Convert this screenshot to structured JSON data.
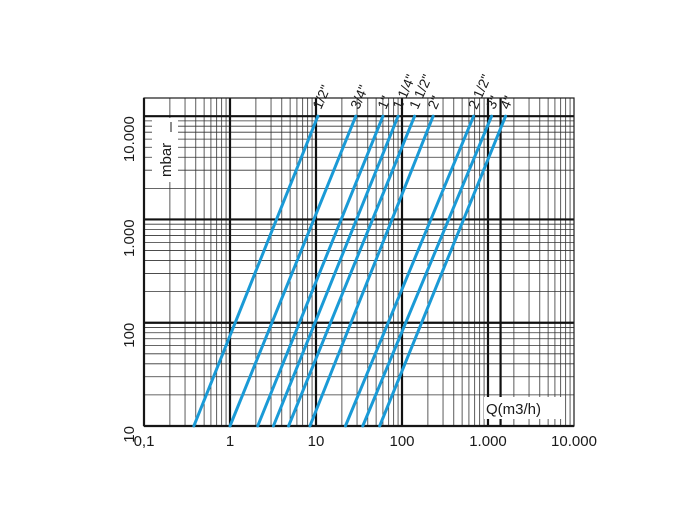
{
  "chart_data": {
    "type": "line",
    "title": "",
    "xlabel": "Q(m3/h)",
    "ylabel": "mbar",
    "x_scale": "log",
    "y_scale": "log",
    "xlim": [
      0.1,
      10000
    ],
    "ylim": [
      10,
      15000
    ],
    "x_tick_labels": [
      "0,1",
      "1",
      "10",
      "100",
      "1.000",
      "10.000"
    ],
    "y_tick_labels": [
      "10",
      "100",
      "1.000",
      "10.000"
    ],
    "x_ticks": [
      0.1,
      1,
      10,
      100,
      1000,
      10000
    ],
    "y_ticks": [
      10,
      100,
      1000,
      10000
    ],
    "grid": true,
    "line_color": "#1a9ad6",
    "series": [
      {
        "name": "1/2\"",
        "x": [
          0.38,
          10.5
        ],
        "y": [
          10,
          10000
        ]
      },
      {
        "name": "3/4\"",
        "x": [
          1.0,
          29
        ],
        "y": [
          10,
          10000
        ]
      },
      {
        "name": "1\"",
        "x": [
          2.1,
          60
        ],
        "y": [
          10,
          10000
        ]
      },
      {
        "name": "1 1/4\"",
        "x": [
          3.2,
          90
        ],
        "y": [
          10,
          10000
        ]
      },
      {
        "name": "1 1/2\"",
        "x": [
          4.8,
          140
        ],
        "y": [
          10,
          10000
        ]
      },
      {
        "name": "2\"",
        "x": [
          8.5,
          230
        ],
        "y": [
          10,
          10000
        ]
      },
      {
        "name": "2 1/2\"",
        "x": [
          22,
          680
        ],
        "y": [
          10,
          10000
        ]
      },
      {
        "name": "3\"",
        "x": [
          35,
          1100
        ],
        "y": [
          10,
          10000
        ]
      },
      {
        "name": "4\"",
        "x": [
          55,
          1600
        ],
        "y": [
          10,
          10000
        ]
      }
    ]
  }
}
